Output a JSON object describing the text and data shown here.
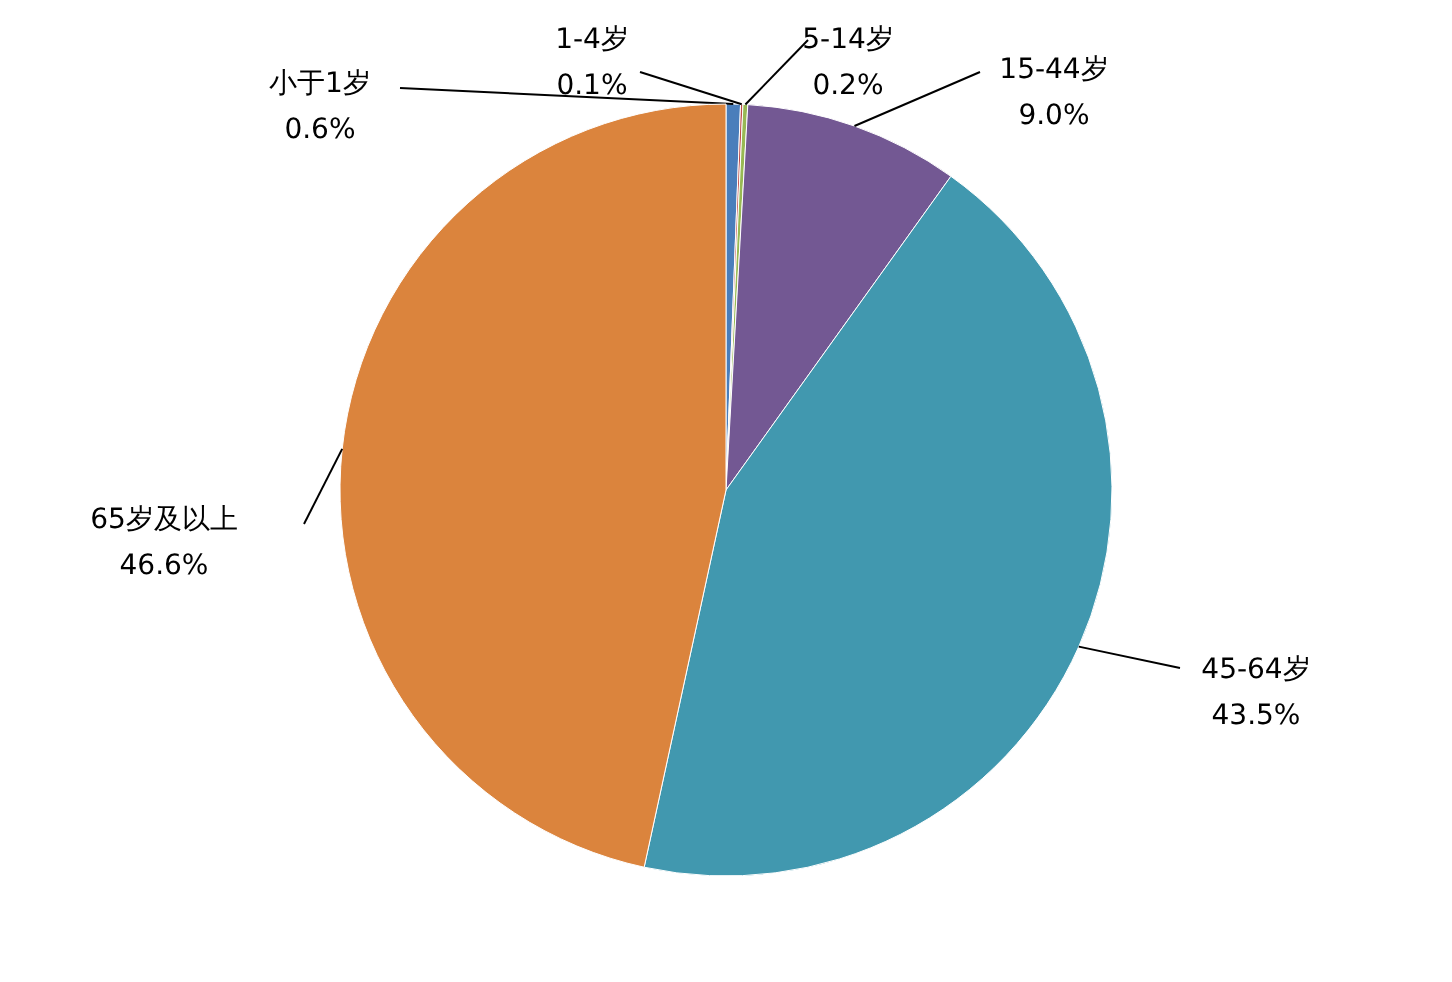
{
  "chart_data": {
    "type": "pie",
    "categories": [
      "小于1岁",
      "1-4岁",
      "5-14岁",
      "15-44岁",
      "45-64岁",
      "65岁及以上"
    ],
    "values": [
      0.6,
      0.1,
      0.2,
      9.0,
      43.5,
      46.6
    ],
    "colors": [
      "#4a7ebb",
      "#be4b48",
      "#98b954",
      "#735893",
      "#4198af",
      "#db843d"
    ],
    "value_labels": [
      "0.6%",
      "0.1%",
      "0.2%",
      "9.0%",
      "43.5%",
      "46.6%"
    ]
  }
}
